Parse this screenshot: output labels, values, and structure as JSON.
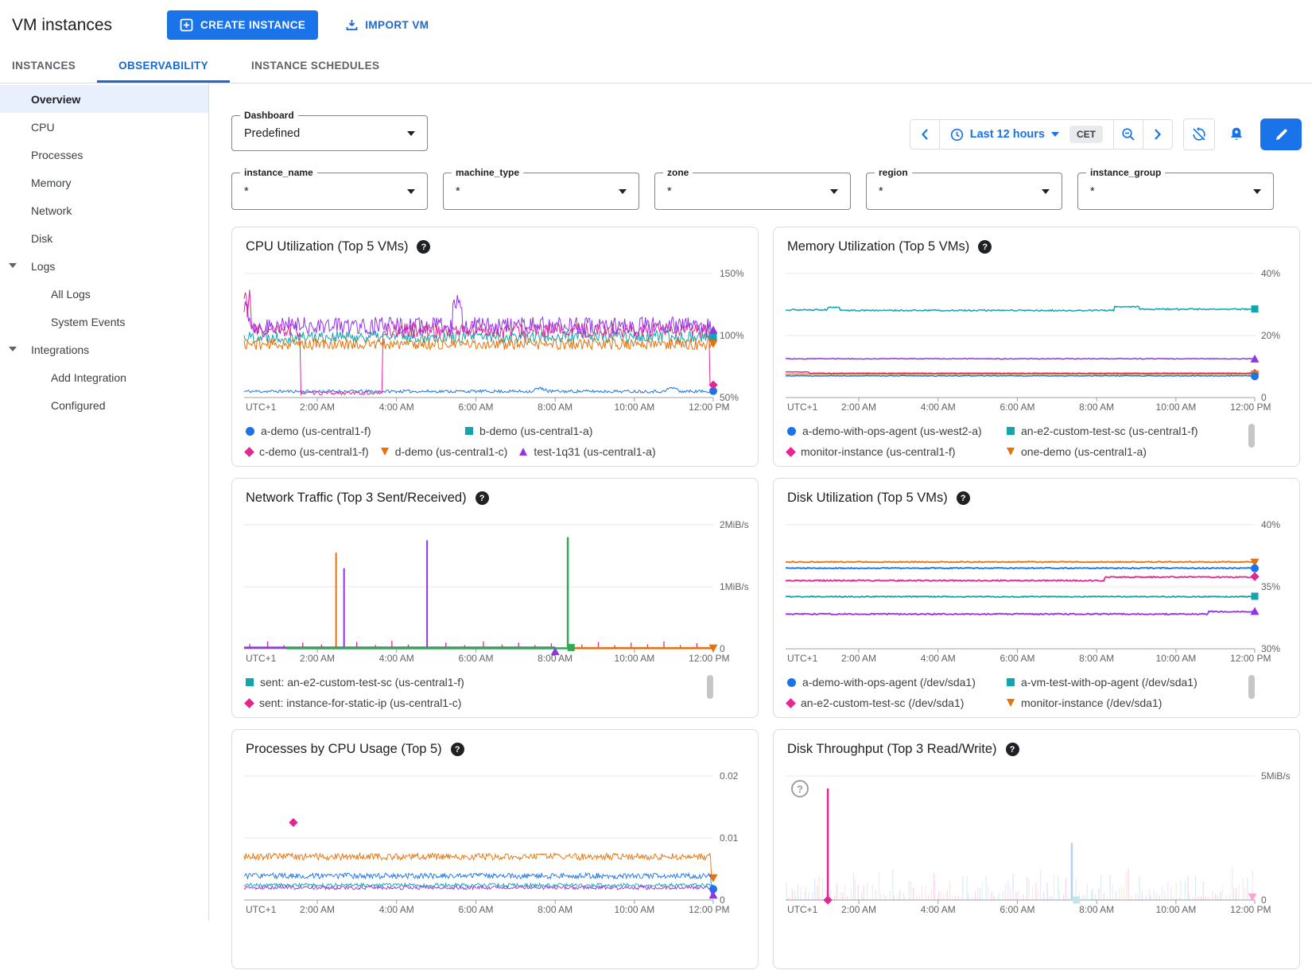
{
  "header": {
    "title": "VM instances",
    "create_button": "CREATE INSTANCE",
    "import_button": "IMPORT VM"
  },
  "tabs": [
    {
      "label": "INSTANCES",
      "active": false
    },
    {
      "label": "OBSERVABILITY",
      "active": true
    },
    {
      "label": "INSTANCE SCHEDULES",
      "active": false
    }
  ],
  "sidebar": {
    "items": [
      {
        "label": "Overview",
        "level": 0,
        "selected": true
      },
      {
        "label": "CPU",
        "level": 0
      },
      {
        "label": "Processes",
        "level": 0
      },
      {
        "label": "Memory",
        "level": 0
      },
      {
        "label": "Network",
        "level": 0
      },
      {
        "label": "Disk",
        "level": 0
      },
      {
        "label": "Logs",
        "level": 0,
        "expandable": true
      },
      {
        "label": "All Logs",
        "level": 1
      },
      {
        "label": "System Events",
        "level": 1
      },
      {
        "label": "Integrations",
        "level": 0,
        "expandable": true
      },
      {
        "label": "Add Integration",
        "level": 1
      },
      {
        "label": "Configured",
        "level": 1
      }
    ]
  },
  "toolbar": {
    "dashboard_label": "Dashboard",
    "dashboard_value": "Predefined",
    "time_range": "Last 12 hours",
    "timezone": "CET"
  },
  "filters": [
    {
      "label": "instance_name",
      "value": "*"
    },
    {
      "label": "machine_type",
      "value": "*"
    },
    {
      "label": "zone",
      "value": "*"
    },
    {
      "label": "region",
      "value": "*"
    },
    {
      "label": "instance_group",
      "value": "*"
    }
  ],
  "x_ticks": [
    "UTC+1",
    "2:00 AM",
    "4:00 AM",
    "6:00 AM",
    "8:00 AM",
    "10:00 AM",
    "12:00 PM"
  ],
  "chart_data": [
    {
      "id": "cpu",
      "type": "line",
      "title": "CPU Utilization (Top 5 VMs)",
      "y_ticks": [
        "150%",
        "100%",
        "50%"
      ],
      "ylim": [
        50,
        150
      ],
      "scrollbar": false,
      "legend_rows": [
        [
          {
            "marker": "circle",
            "color": "#1a73e8",
            "label": "a-demo (us-central1-f)"
          },
          {
            "marker": "square",
            "color": "#12a4af",
            "label": "b-demo (us-central1-a)"
          }
        ],
        [
          {
            "marker": "diamond",
            "color": "#e52592",
            "label": "c-demo (us-central1-f)"
          },
          {
            "marker": "tri-down",
            "color": "#e8710a",
            "label": "d-demo (us-central1-c)"
          },
          {
            "marker": "tri-up",
            "color": "#9334e6",
            "label": "test-1q31 (us-central1-a)"
          }
        ]
      ],
      "series": [
        {
          "name": "a-demo (us-central1-f)",
          "color": "#1a73e8",
          "marker": "circle",
          "base": 55,
          "amp": 1.2,
          "seed": 11,
          "width": 1,
          "overrides": [
            {
              "f0": 0.62,
              "f1": 0.645,
              "v": 57,
              "amp": 1.6
            },
            {
              "f0": 0.9,
              "f1": 0.925,
              "v": 57.5,
              "amp": 1.6
            }
          ]
        },
        {
          "name": "b-demo (us-central1-a)",
          "color": "#12a4af",
          "marker": "square",
          "base": 99,
          "amp": 5,
          "seed": 22,
          "width": 1
        },
        {
          "name": "c-demo (us-central1-f)",
          "color": "#e52592",
          "marker": "diamond",
          "base": 104,
          "amp": 6,
          "seed": 33,
          "width": 1,
          "overrides": [
            {
              "f0": 0,
              "f1": 0.015,
              "v": 128,
              "amp": 14
            },
            {
              "f0": 0.12,
              "f1": 0.295,
              "v": 53.5,
              "amp": 1.3
            },
            {
              "f0": 0.992,
              "f1": 1.01,
              "v": 60,
              "amp": 0.5
            }
          ]
        },
        {
          "name": "d-demo (us-central1-c)",
          "color": "#e8710a",
          "marker": "tri-down",
          "base": 93,
          "amp": 4.5,
          "seed": 44,
          "width": 1
        },
        {
          "name": "test-1q31 (us-central1-a)",
          "color": "#9334e6",
          "marker": "tri-up",
          "base": 108,
          "amp": 7,
          "seed": 55,
          "width": 1,
          "overrides": [
            {
              "f0": 0,
              "f1": 0.012,
              "v": 120,
              "amp": 10
            },
            {
              "f0": 0.445,
              "f1": 0.465,
              "v": 128,
              "amp": 7
            }
          ]
        }
      ]
    },
    {
      "id": "memory",
      "type": "line",
      "title": "Memory Utilization (Top 5 VMs)",
      "y_ticks": [
        "40%",
        "20%",
        "0"
      ],
      "ylim": [
        0,
        40
      ],
      "scrollbar": true,
      "legend_rows": [
        [
          {
            "marker": "circle",
            "color": "#1a73e8",
            "label": "a-demo-with-ops-agent (us-west2-a)"
          },
          {
            "marker": "square",
            "color": "#12a4af",
            "label": "an-e2-custom-test-sc (us-central1-f)"
          }
        ],
        [
          {
            "marker": "diamond",
            "color": "#e52592",
            "label": "monitor-instance (us-central1-f)"
          },
          {
            "marker": "tri-down",
            "color": "#e8710a",
            "label": "one-demo (us-central1-a)"
          }
        ]
      ],
      "series": [
        {
          "name": "an-e2-custom-test-sc (us-central1-f)",
          "color": "#12a4af",
          "marker": "square",
          "base": 28.1,
          "amp": 0.22,
          "seed": 72,
          "width": 1.5,
          "overrides": [
            {
              "f0": 0,
              "f1": 0.09,
              "v": 28.3
            },
            {
              "f0": 0.09,
              "f1": 0.115,
              "v": 29.0
            },
            {
              "f0": 0.7,
              "f1": 0.755,
              "v": 29.3
            },
            {
              "f0": 0.755,
              "f1": 1.01,
              "v": 28.5
            }
          ]
        },
        {
          "name": "",
          "color": "#9334e6",
          "marker": "tri-up",
          "base": 12.5,
          "amp": 0.12,
          "seed": 73,
          "width": 1.5
        },
        {
          "name": "monitor-instance (us-central1-f)",
          "color": "#e52592",
          "marker": "diamond",
          "base": 7.85,
          "amp": 0.08,
          "seed": 74,
          "width": 1.5,
          "overrides": [
            {
              "f0": 0,
              "f1": 0.05,
              "v": 8.25
            }
          ]
        },
        {
          "name": "one-demo (us-central1-a)",
          "color": "#e8710a",
          "marker": "tri-down",
          "base": 7.55,
          "amp": 0.06,
          "seed": 75,
          "width": 1.2
        },
        {
          "name": "a-demo-with-ops-agent (us-west2-a)",
          "color": "#1a73e8",
          "marker": "circle",
          "base": 7.0,
          "amp": 0.12,
          "seed": 71,
          "width": 1.5
        }
      ]
    },
    {
      "id": "network",
      "type": "line",
      "title": "Network Traffic (Top 3 Sent/Received)",
      "y_ticks": [
        "2MiB/s",
        "1MiB/s",
        "0"
      ],
      "ylim": [
        0,
        2
      ],
      "scrollbar": true,
      "legend_rows": [
        [
          {
            "marker": "square",
            "color": "#12a4af",
            "label": "sent: an-e2-custom-test-sc (us-central1-f)"
          }
        ],
        [
          {
            "marker": "diamond",
            "color": "#e52592",
            "label": "sent: instance-for-static-ip (us-central1-c)"
          }
        ]
      ],
      "segments": [
        {
          "f0": 0,
          "f1": 0.663,
          "v": 0.02,
          "color": "#9334e6",
          "marker": "tri-up",
          "moff": 5
        },
        {
          "f0": 0.09,
          "f1": 0.697,
          "v": 0.008,
          "color": "#34a853",
          "marker": "square",
          "moff": -1
        },
        {
          "f0": 0.697,
          "f1": 1.0,
          "v": 0.012,
          "color": "#e8710a",
          "marker": "tri-down",
          "moff": 0
        }
      ],
      "spikes": [
        {
          "f": 0.196,
          "v": 1.55,
          "color": "#e8710a",
          "w": 2
        },
        {
          "f": 0.213,
          "v": 1.3,
          "color": "#9334e6",
          "w": 2
        },
        {
          "f": 0.39,
          "v": 1.75,
          "color": "#9334e6",
          "w": 2
        },
        {
          "f": 0.69,
          "v": 1.8,
          "color": "#34a853",
          "w": 2.5
        },
        {
          "f": 0.012,
          "v": 0.08
        },
        {
          "f": 0.05,
          "v": 0.12
        },
        {
          "f": 0.085,
          "v": 0.06
        },
        {
          "f": 0.125,
          "v": 0.1
        },
        {
          "f": 0.165,
          "v": 0.07
        },
        {
          "f": 0.24,
          "v": 0.11
        },
        {
          "f": 0.28,
          "v": 0.06
        },
        {
          "f": 0.315,
          "v": 0.13
        },
        {
          "f": 0.35,
          "v": 0.07
        },
        {
          "f": 0.43,
          "v": 0.1
        },
        {
          "f": 0.47,
          "v": 0.06
        },
        {
          "f": 0.51,
          "v": 0.12
        },
        {
          "f": 0.55,
          "v": 0.07
        },
        {
          "f": 0.585,
          "v": 0.1
        },
        {
          "f": 0.62,
          "v": 0.06
        },
        {
          "f": 0.655,
          "v": 0.09
        },
        {
          "f": 0.72,
          "v": 0.07
        },
        {
          "f": 0.755,
          "v": 0.11
        },
        {
          "f": 0.79,
          "v": 0.06
        },
        {
          "f": 0.825,
          "v": 0.1
        },
        {
          "f": 0.86,
          "v": 0.07
        },
        {
          "f": 0.895,
          "v": 0.12
        },
        {
          "f": 0.93,
          "v": 0.06
        },
        {
          "f": 0.965,
          "v": 0.09
        }
      ],
      "spike_default_color": "#e52592"
    },
    {
      "id": "disk",
      "type": "line",
      "title": "Disk Utilization (Top 5 VMs)",
      "y_ticks": [
        "40%",
        "35%",
        "30%"
      ],
      "ylim": [
        30,
        40
      ],
      "scrollbar": true,
      "legend_rows": [
        [
          {
            "marker": "circle",
            "color": "#1a73e8",
            "label": "a-demo-with-ops-agent (/dev/sda1)"
          },
          {
            "marker": "square",
            "color": "#12a4af",
            "label": "a-vm-test-with-op-agent (/dev/sda1)"
          }
        ],
        [
          {
            "marker": "diamond",
            "color": "#e52592",
            "label": "an-e2-custom-test-sc (/dev/sda1)"
          },
          {
            "marker": "tri-down",
            "color": "#e8710a",
            "label": "monitor-instance (/dev/sda1)"
          }
        ]
      ],
      "series": [
        {
          "name": "monitor-instance (/dev/sda1)",
          "color": "#e8710a",
          "marker": "tri-down",
          "base": 37.0,
          "amp": 0.04,
          "seed": 81,
          "width": 1.8
        },
        {
          "name": "a-demo-with-ops-agent (/dev/sda1)",
          "color": "#1a73e8",
          "marker": "circle",
          "base": 36.5,
          "amp": 0.04,
          "seed": 82,
          "width": 1.8
        },
        {
          "name": "an-e2-custom-test-sc (/dev/sda1)",
          "color": "#e52592",
          "marker": "diamond",
          "base": 35.5,
          "amp": 0.05,
          "seed": 83,
          "width": 1.8,
          "overrides": [
            {
              "f0": 0.68,
              "f1": 1.01,
              "v": 35.78
            }
          ]
        },
        {
          "name": "a-vm-test-with-op-agent (/dev/sda1)",
          "color": "#12a4af",
          "marker": "square",
          "base": 34.2,
          "amp": 0.04,
          "seed": 84,
          "width": 1.8
        },
        {
          "name": "",
          "color": "#9334e6",
          "marker": "tri-up",
          "base": 32.8,
          "amp": 0.05,
          "seed": 85,
          "width": 1.8,
          "overrides": [
            {
              "f0": 0.9,
              "f1": 1.01,
              "v": 33.0
            }
          ]
        }
      ]
    },
    {
      "id": "processes",
      "type": "line",
      "title": "Processes by CPU Usage (Top 5)",
      "y_ticks": [
        "0.02",
        "0.01",
        "0"
      ],
      "ylim": [
        0,
        0.02
      ],
      "scrollbar": false,
      "clipped": true,
      "legend_rows": [],
      "point": {
        "f": 0.105,
        "v": 0.0125,
        "marker": "diamond",
        "color": "#e52592"
      },
      "series": [
        {
          "name": "",
          "color": "#e8710a",
          "marker": "tri-down",
          "base": 0.007,
          "amp": 0.00055,
          "seed": 91,
          "width": 0.9,
          "n": 520,
          "overrides": [
            {
              "f0": 0.995,
              "f1": 1.01,
              "v": 0.0036,
              "amp": 0.0001
            }
          ]
        },
        {
          "name": "",
          "color": "#1a73e8",
          "marker": "circle",
          "base": 0.0039,
          "amp": 0.00045,
          "seed": 92,
          "width": 0.9,
          "n": 520,
          "overrides": [
            {
              "f0": 0.995,
              "f1": 1.01,
              "v": 0.0018,
              "amp": 0.0001
            }
          ]
        },
        {
          "name": "",
          "color": "#12a4af",
          "marker": null,
          "base": 0.0024,
          "amp": 0.0003,
          "seed": 93,
          "width": 0.9,
          "n": 520
        },
        {
          "name": "",
          "color": "#9334e6",
          "marker": "tri-up",
          "base": 0.002,
          "amp": 0.0003,
          "seed": 94,
          "width": 0.9,
          "n": 520,
          "overrides": [
            {
              "f0": 0.995,
              "f1": 1.01,
              "v": 0.0008,
              "amp": 0.0001
            }
          ]
        }
      ]
    },
    {
      "id": "throughput",
      "type": "line",
      "title": "Disk Throughput (Top 3 Read/Write)",
      "y_ticks": [
        "5MiB/s",
        "0"
      ],
      "ylim": [
        0,
        5
      ],
      "scrollbar": false,
      "clipped": true,
      "legend_rows": [],
      "help_overlay": "?",
      "big_spikes": [
        {
          "f": 0.09,
          "v": 4.5,
          "color": "#e52592",
          "w": 2.5
        },
        {
          "f": 0.61,
          "v": 2.3,
          "color": "#b3d1f5",
          "w": 2.5
        }
      ],
      "markers": [
        {
          "f": 0.09,
          "v": 0,
          "marker": "diamond",
          "color": "#e52592"
        },
        {
          "f": 0.62,
          "v": 0,
          "marker": "square",
          "color": "#c5e3ea"
        },
        {
          "f": 0.995,
          "v": 0.12,
          "marker": "tri-down",
          "color": "#f8a8cd"
        }
      ],
      "background": {
        "count": 170,
        "maxv": 1.35,
        "seed": 99,
        "colors": [
          "rgba(229,37,146,0.20)",
          "rgba(26,115,232,0.16)",
          "rgba(18,164,175,0.16)",
          "rgba(232,113,10,0.15)",
          "rgba(147,52,230,0.13)",
          "rgba(154,160,166,0.18)"
        ]
      }
    }
  ]
}
